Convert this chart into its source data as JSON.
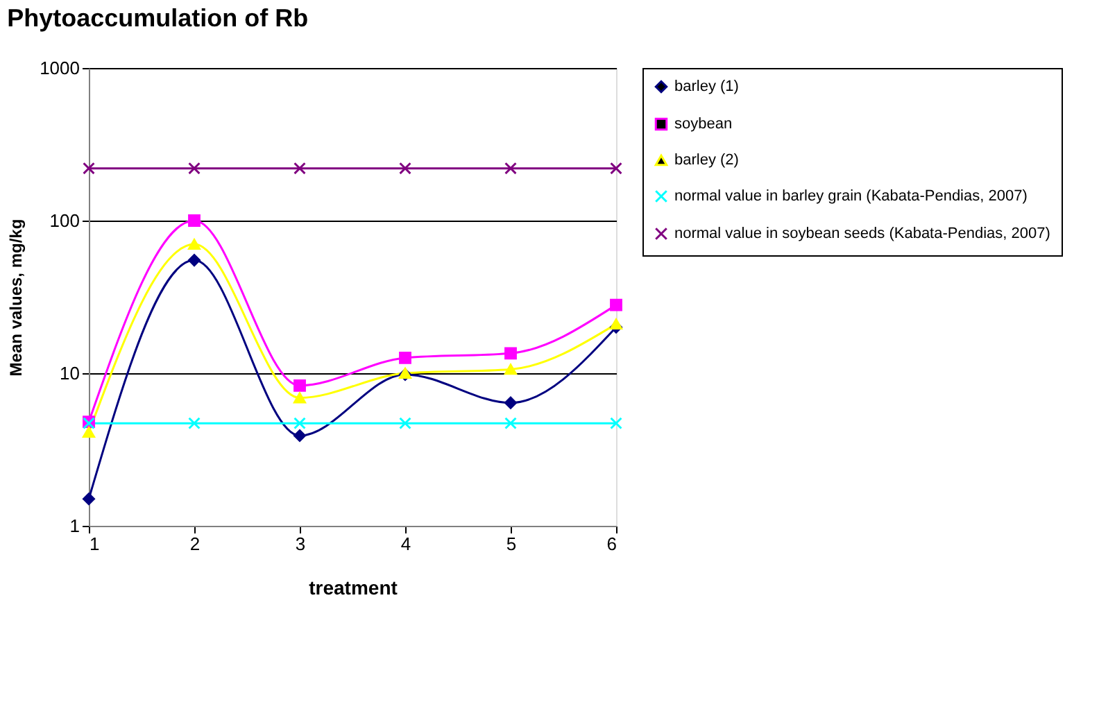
{
  "chart_data": {
    "type": "line",
    "title": "Phytoaccumulation of Rb",
    "xlabel": "treatment",
    "ylabel": "Mean values, mg/kg",
    "x": [
      1,
      2,
      3,
      4,
      5,
      6
    ],
    "xlim": [
      1,
      6
    ],
    "xticks": [
      1,
      2,
      3,
      4,
      5,
      6
    ],
    "ylim": [
      1,
      1000
    ],
    "yticks": [
      1,
      10,
      100,
      1000
    ],
    "log": true,
    "grid": "y",
    "legend": "right",
    "series": [
      {
        "name": "barley (1)",
        "color": "#000080",
        "marker": "diamond",
        "values": [
          1.5,
          55,
          3.9,
          9.8,
          6.4,
          20
        ]
      },
      {
        "name": "soybean",
        "color": "#ff00ff",
        "marker": "square",
        "values": [
          4.8,
          100,
          8.3,
          12.6,
          13.5,
          28
        ]
      },
      {
        "name": "barley (2)",
        "color": "#ffff00",
        "marker": "triangle",
        "values": [
          4.1,
          70,
          6.9,
          10,
          10.6,
          21
        ]
      },
      {
        "name": "normal value in barley grain (Kabata-Pendias, 2007)",
        "color": "#00ffff",
        "marker": "cross",
        "values": [
          4.7,
          4.7,
          4.7,
          4.7,
          4.7,
          4.7
        ]
      },
      {
        "name": "normal value in soybean seeds (Kabata-Pendias, 2007)",
        "color": "#800080",
        "marker": "cross",
        "values": [
          220,
          220,
          220,
          220,
          220,
          220
        ]
      }
    ]
  }
}
